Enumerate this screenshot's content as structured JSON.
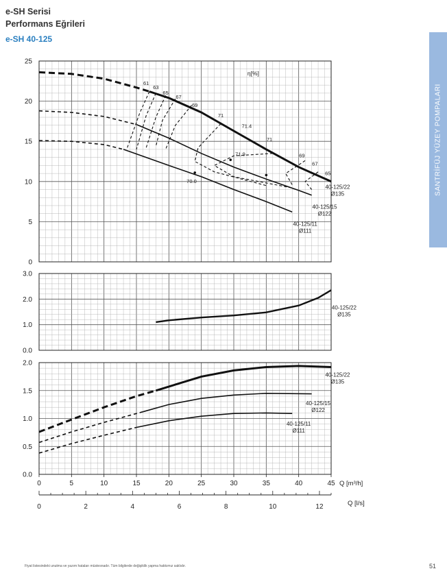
{
  "header": {
    "series": "e-SH Serisi",
    "subtitle": "Performans Eğrileri",
    "model": "e-SH 40-125"
  },
  "sidebar_text": "SANTRİFÜJ YÜZEY POMPALARI",
  "footer_note": "Fiyat listesindeki unutma ve yazım hataları müstesnadır. Tüm bilgilerde değişiklik yapma hakkımız saklıdır.",
  "page_number": "51",
  "chart_data": [
    {
      "type": "line",
      "name": "head",
      "xlim": [
        0,
        45
      ],
      "ylim": [
        0,
        25
      ],
      "yticks": [
        "0",
        "5",
        "10",
        "15",
        "20",
        "25"
      ],
      "annotation_unit": "η[%]",
      "series": [
        {
          "name": "40-125/22 Ø135",
          "dashed_part": [
            [
              0,
              23.6
            ],
            [
              5,
              23.4
            ],
            [
              10,
              22.8
            ],
            [
              15,
              21.7
            ],
            [
              17,
              21.2
            ]
          ],
          "solid_part": [
            [
              17,
              21.2
            ],
            [
              20,
              20.4
            ],
            [
              25,
              18.6
            ],
            [
              30,
              16.3
            ],
            [
              35,
              14.0
            ],
            [
              40,
              11.8
            ],
            [
              45,
              10.0
            ]
          ]
        },
        {
          "name": "40-125/15 Ø122",
          "dashed_part": [
            [
              0,
              18.8
            ],
            [
              5,
              18.6
            ],
            [
              10,
              18.1
            ],
            [
              15,
              17.1
            ]
          ],
          "solid_part": [
            [
              15,
              17.1
            ],
            [
              20,
              15.4
            ],
            [
              25,
              13.5
            ],
            [
              30,
              11.8
            ],
            [
              35,
              10.3
            ],
            [
              40,
              8.9
            ],
            [
              42,
              8.3
            ]
          ]
        },
        {
          "name": "40-125/11 Ø111",
          "dashed_part": [
            [
              0,
              15.1
            ],
            [
              5,
              15.0
            ],
            [
              10,
              14.6
            ],
            [
              13,
              14.0
            ]
          ],
          "solid_part": [
            [
              13,
              14.0
            ],
            [
              20,
              12.0
            ],
            [
              25,
              10.6
            ],
            [
              30,
              9.0
            ],
            [
              35,
              7.5
            ],
            [
              39,
              6.2
            ]
          ]
        }
      ],
      "series_labels": [
        {
          "line1": "40-125/22",
          "line2": "Ø135"
        },
        {
          "line1": "40-125/15",
          "line2": "Ø122"
        },
        {
          "line1": "40-125/11",
          "line2": "Ø111"
        }
      ],
      "efficiency_labels": [
        "61",
        "63",
        "65",
        "67",
        "69",
        "71",
        "71.4",
        "71",
        "69",
        "67",
        "65",
        "71.9",
        "70.0"
      ]
    },
    {
      "type": "line",
      "name": "npsh",
      "xlim": [
        0,
        45
      ],
      "ylim": [
        0,
        3
      ],
      "yticks": [
        "0.0",
        "1.0",
        "2.0",
        "3.0"
      ],
      "series": [
        {
          "name": "40-125/22 Ø135",
          "points": [
            [
              18,
              1.1
            ],
            [
              20,
              1.17
            ],
            [
              25,
              1.28
            ],
            [
              30,
              1.36
            ],
            [
              35,
              1.48
            ],
            [
              40,
              1.75
            ],
            [
              43,
              2.05
            ],
            [
              45,
              2.35
            ]
          ]
        }
      ],
      "series_labels": [
        {
          "line1": "40-125/22",
          "line2": "Ø135"
        }
      ]
    },
    {
      "type": "line",
      "name": "power",
      "xlim": [
        0,
        45
      ],
      "ylim": [
        0,
        2
      ],
      "yticks": [
        "0.0",
        "0.5",
        "1.0",
        "1.5",
        "2.0"
      ],
      "xticks_m3h": [
        "0",
        "5",
        "10",
        "15",
        "20",
        "25",
        "30",
        "35",
        "40",
        "45"
      ],
      "xlabel_m3h": "Q [m³/h]",
      "xticks_ls": [
        "0",
        "2",
        "4",
        "6",
        "8",
        "10",
        "12"
      ],
      "xlabel_ls": "Q [l/s]",
      "series": [
        {
          "name": "40-125/22 Ø135",
          "dashed_part": [
            [
              0,
              0.76
            ],
            [
              5,
              0.98
            ],
            [
              10,
              1.2
            ],
            [
              15,
              1.4
            ],
            [
              18,
              1.5
            ]
          ],
          "solid_part": [
            [
              18,
              1.5
            ],
            [
              25,
              1.75
            ],
            [
              30,
              1.86
            ],
            [
              35,
              1.92
            ],
            [
              40,
              1.94
            ],
            [
              45,
              1.92
            ]
          ]
        },
        {
          "name": "40-125/15 Ø122",
          "dashed_part": [
            [
              0,
              0.57
            ],
            [
              5,
              0.76
            ],
            [
              10,
              0.93
            ],
            [
              16,
              1.12
            ]
          ],
          "solid_part": [
            [
              16,
              1.12
            ],
            [
              20,
              1.25
            ],
            [
              25,
              1.36
            ],
            [
              30,
              1.42
            ],
            [
              35,
              1.45
            ],
            [
              42,
              1.44
            ]
          ]
        },
        {
          "name": "40-125/11 Ø111",
          "dashed_part": [
            [
              0,
              0.38
            ],
            [
              5,
              0.55
            ],
            [
              10,
              0.7
            ],
            [
              15,
              0.84
            ]
          ],
          "solid_part": [
            [
              15,
              0.84
            ],
            [
              20,
              0.96
            ],
            [
              25,
              1.04
            ],
            [
              30,
              1.09
            ],
            [
              35,
              1.1
            ],
            [
              39,
              1.09
            ]
          ]
        }
      ],
      "series_labels": [
        {
          "line1": "40-125/22",
          "line2": "Ø135"
        },
        {
          "line1": "40-125/15",
          "line2": "Ø122"
        },
        {
          "line1": "40-125/11",
          "line2": "Ø111"
        }
      ]
    }
  ]
}
